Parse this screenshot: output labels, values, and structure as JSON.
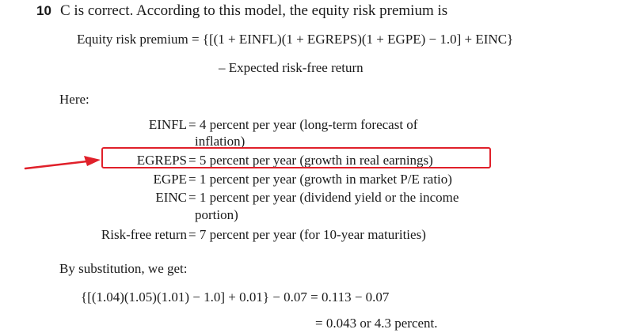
{
  "question_number": "10",
  "intro": "C is correct. According to this model, the equity risk premium is",
  "formula": {
    "label": "Equity risk premium =",
    "expr_open": "{[(1 + EINFL)(1 + EGREPS)(1 + EGPE) − 1.0",
    "expr_close": "] + EINC}",
    "line2": "– Expected risk-free return"
  },
  "here_label": "Here:",
  "definitions": [
    {
      "term": "EINFL",
      "value": "= 4 percent per year (long-term forecast of",
      "continuation": "inflation)"
    },
    {
      "term": "EGREPS",
      "value": "= 5 percent per year (growth in real earnings)"
    },
    {
      "term": "EGPE",
      "value": "= 1 percent per year (growth in market P/E ratio)"
    },
    {
      "term": "EINC",
      "value": "= 1 percent per year (dividend yield or the income",
      "continuation": "portion)"
    },
    {
      "term": "Risk-free return",
      "value": "= 7 percent per year (for 10-year maturities)"
    }
  ],
  "substitution_label": "By substitution, we get:",
  "substitution": {
    "line1": "{[(1.04)(1.05)(1.01) − 1.0] + 0.01} − 0.07 = 0.113 − 0.07",
    "line2": "= 0.043 or 4.3 percent."
  },
  "highlight": {
    "color": "#e0202a",
    "target": "EGREPS"
  }
}
